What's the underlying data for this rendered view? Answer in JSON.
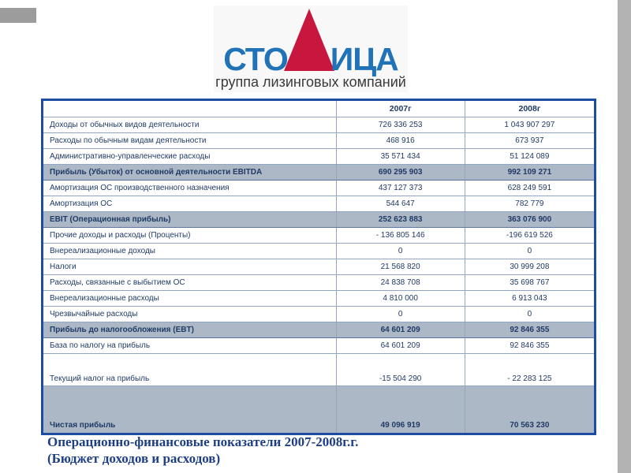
{
  "logo": {
    "text_left": "СТО",
    "text_right": "ИЦА",
    "subtitle": "группа лизинговых компаний"
  },
  "colors": {
    "brand_blue": "#2173b8",
    "brand_red": "#c8173f",
    "table_border_blue": "#1d4da0",
    "grid_line": "#93a6c1",
    "highlight_row_bg": "#adb8c6",
    "table_text_navy": "#203a66",
    "caption_blue": "#1e3f86"
  },
  "table": {
    "header": {
      "label": "",
      "y2007": "2007г",
      "y2008": "2008г"
    },
    "rows": [
      {
        "label": "Доходы от обычных видов деятельности",
        "y2007": "726 336 253",
        "y2008": "1 043 907 297"
      },
      {
        "label": "Расходы по обычным видам деятельности",
        "y2007": "468 916",
        "y2008": "673 937"
      },
      {
        "label": "Административно-управленческие расходы",
        "y2007": "35 571 434",
        "y2008": "51 124 089"
      },
      {
        "label": "Прибыль (Убыток) от основной деятельности EBITDA",
        "y2007": "690 295 903",
        "y2008": "992 109 271"
      },
      {
        "label": "Амортизация ОС производственного назначения",
        "y2007": "437 127 373",
        "y2008": "628 249 591"
      },
      {
        "label": "Амортизация ОС",
        "y2007": "544 647",
        "y2008": "782 779"
      },
      {
        "label": "EBIT (Операционная прибыль)",
        "y2007": "252 623 883",
        "y2008": "363 076 900"
      },
      {
        "label": "Прочие доходы и расходы (Проценты)",
        "y2007": "- 136 805 146",
        "y2008": "-196 619 526"
      },
      {
        "label": "Внереализационные доходы",
        "y2007": "0",
        "y2008": "0"
      },
      {
        "label": "Налоги",
        "y2007": "21 568 820",
        "y2008": "30 999 208"
      },
      {
        "label": "Расходы, связанные с выбытием ОС",
        "y2007": "24 838 708",
        "y2008": "35 698 767"
      },
      {
        "label": "Внереализационные расходы",
        "y2007": "4 810 000",
        "y2008": "6 913 043"
      },
      {
        "label": "Чрезвычайные расходы",
        "y2007": "0",
        "y2008": "0"
      },
      {
        "label": "Прибыль до налогообложения (EBT)",
        "y2007": "64 601 209",
        "y2008": "92 846 355"
      },
      {
        "label": "База по налогу на прибыль",
        "y2007": "64 601 209",
        "y2008": "92 846 355"
      },
      {
        "label": "Текущий налог на прибыль",
        "y2007": "-15 504 290",
        "y2008": "- 22 283 125"
      },
      {
        "label": "Чистая прибыль",
        "y2007": "49 096 919",
        "y2008": "70 563 230"
      }
    ]
  },
  "caption": {
    "line1": "Операционно-финансовые показатели 2007-2008г.г.",
    "line2": "(Бюджет доходов и расходов)"
  }
}
